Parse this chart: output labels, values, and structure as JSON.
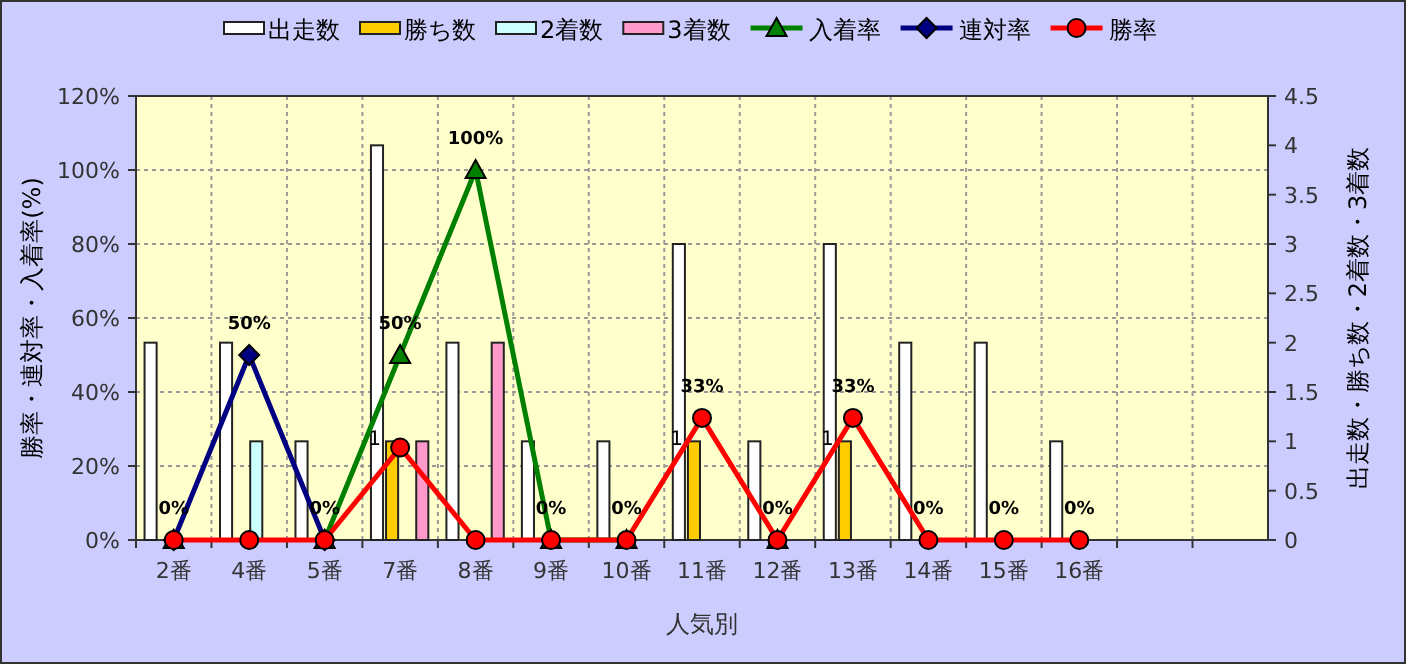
{
  "chart_data": {
    "type": "bar",
    "categories": [
      "2番",
      "4番",
      "5番",
      "7番",
      "8番",
      "9番",
      "10番",
      "11番",
      "12番",
      "13番",
      "14番",
      "15番",
      "16番",
      null,
      null
    ],
    "xlabel": "人気別",
    "ylabel": "勝率・連対率・入着率(%)",
    "y2label": "出走数・勝ち数・2着数・3着数",
    "ylim": [
      0,
      120
    ],
    "yticks": [
      {
        "value": 0,
        "label": "0%"
      },
      {
        "value": 20,
        "label": "20%"
      },
      {
        "value": 40,
        "label": "40%"
      },
      {
        "value": 60,
        "label": "60%"
      },
      {
        "value": 80,
        "label": "80%"
      },
      {
        "value": 100,
        "label": "100%"
      },
      {
        "value": 120,
        "label": "120%"
      }
    ],
    "y2lim": [
      0,
      4.5
    ],
    "y2ticks": [
      0,
      0.5,
      1,
      1.5,
      2,
      2.5,
      3,
      3.5,
      4,
      4.5
    ],
    "grid": true,
    "legend": "top",
    "series": [
      {
        "name": "出走数",
        "axis": "y2",
        "color": "#ffffff",
        "values": [
          2,
          2,
          1,
          4,
          2,
          1,
          1,
          3,
          1,
          3,
          2,
          2,
          1,
          null,
          null
        ]
      },
      {
        "name": "勝ち数",
        "axis": "y2",
        "color": "#ffcc00",
        "values": [
          0,
          0,
          0,
          1,
          0,
          0,
          0,
          1,
          0,
          1,
          0,
          0,
          0,
          null,
          null
        ],
        "value_labels": [
          null,
          null,
          null,
          "1",
          null,
          null,
          null,
          "1",
          null,
          "1",
          null,
          null,
          null,
          null,
          null
        ]
      },
      {
        "name": "2着数",
        "axis": "y2",
        "color": "#ccffff",
        "values": [
          0,
          1,
          0,
          0,
          0,
          0,
          0,
          0,
          0,
          0,
          0,
          0,
          0,
          null,
          null
        ]
      },
      {
        "name": "3着数",
        "axis": "y2",
        "color": "#ff99cc",
        "values": [
          0,
          0,
          0,
          1,
          2,
          0,
          0,
          0,
          0,
          0,
          0,
          0,
          0,
          null,
          null
        ]
      },
      {
        "name": "入着率",
        "type": "line",
        "marker": "triangle",
        "color": "#008000",
        "values": [
          0,
          null,
          0,
          50,
          100,
          0,
          0,
          null,
          0,
          null,
          null,
          null,
          null,
          null,
          null
        ],
        "value_labels": [
          null,
          null,
          null,
          "50%",
          "100%",
          null,
          null,
          null,
          null,
          null,
          null,
          null,
          null,
          null,
          null
        ]
      },
      {
        "name": "連対率",
        "type": "line",
        "marker": "diamond",
        "color": "#000080",
        "values": [
          0,
          50,
          0,
          null,
          null,
          null,
          null,
          null,
          null,
          null,
          null,
          null,
          null,
          null,
          null
        ],
        "value_labels": [
          null,
          "50%",
          null,
          null,
          null,
          null,
          null,
          null,
          null,
          null,
          null,
          null,
          null,
          null,
          null
        ]
      },
      {
        "name": "勝率",
        "type": "line",
        "marker": "circle",
        "color": "#ff0000",
        "values": [
          0,
          0,
          0,
          25,
          0,
          0,
          0,
          33,
          0,
          33,
          0,
          0,
          0,
          null,
          null
        ],
        "value_labels": [
          "0%",
          null,
          "0%",
          null,
          null,
          "0%",
          "0%",
          "33%",
          "0%",
          "33%",
          "0%",
          "0%",
          "0%",
          null,
          null
        ]
      }
    ]
  }
}
